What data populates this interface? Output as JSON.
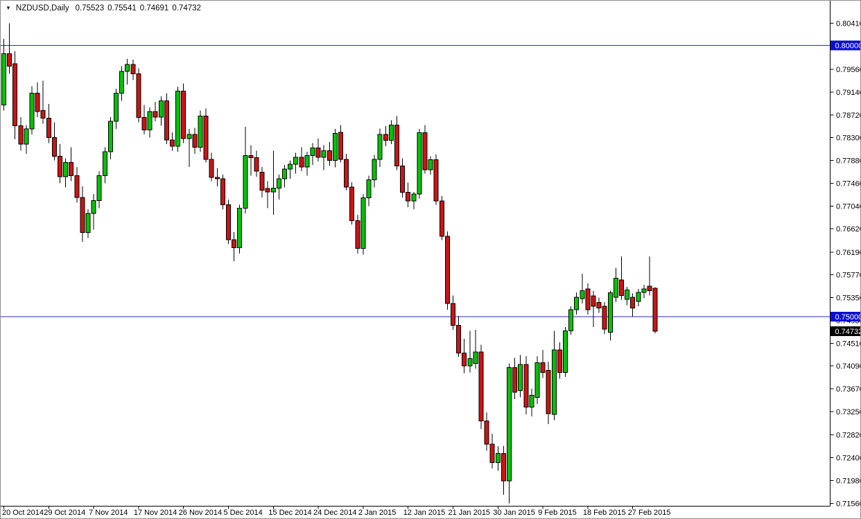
{
  "window": {
    "dropdown_icon": "▼",
    "symbol_period": "NZDUSD,Daily",
    "open": "0.75523",
    "high": "0.75541",
    "low": "0.74691",
    "close": "0.74732"
  },
  "colors": {
    "background": "#ffffff",
    "border": "#8f8f8f",
    "bull": "#00c300",
    "bear": "#cc1414",
    "outline": "#000000",
    "axis_line": "#000000",
    "axis_text": "#000000",
    "level_line": "#2828b4",
    "level_label_bg": "#0d0dd2",
    "current_label_bg": "#000000",
    "label_text": "#ffffff"
  },
  "chart_data": {
    "type": "candlestick",
    "title": "NZDUSD,Daily",
    "symbol": "NZDUSD",
    "timeframe": "Daily",
    "last_ohlc": {
      "open": 0.75523,
      "high": 0.75541,
      "low": 0.74691,
      "close": 0.74732
    },
    "ylim": [
      0.7156,
      0.8047
    ],
    "grid": false,
    "y_ticks": [
      {
        "label": "0.80410",
        "price": 0.8041
      },
      {
        "label": "0.79560",
        "price": 0.7956
      },
      {
        "label": "0.79140",
        "price": 0.7914
      },
      {
        "label": "0.78720",
        "price": 0.7872
      },
      {
        "label": "0.78300",
        "price": 0.783
      },
      {
        "label": "0.77880",
        "price": 0.7788
      },
      {
        "label": "0.77460",
        "price": 0.7746
      },
      {
        "label": "0.77040",
        "price": 0.7704
      },
      {
        "label": "0.76620",
        "price": 0.7662
      },
      {
        "label": "0.76190",
        "price": 0.7619
      },
      {
        "label": "0.75770",
        "price": 0.7577
      },
      {
        "label": "0.75350",
        "price": 0.7535
      },
      {
        "label": "0.74930",
        "price": 0.7493
      },
      {
        "label": "0.74510",
        "price": 0.7451
      },
      {
        "label": "0.74090",
        "price": 0.7409
      },
      {
        "label": "0.73670",
        "price": 0.7367
      },
      {
        "label": "0.73250",
        "price": 0.7325
      },
      {
        "label": "0.72820",
        "price": 0.7282
      },
      {
        "label": "0.72400",
        "price": 0.724
      },
      {
        "label": "0.71980",
        "price": 0.7198
      },
      {
        "label": "0.71560",
        "price": 0.7156
      }
    ],
    "levels": [
      {
        "label": "0.80000",
        "price": 0.8
      },
      {
        "label": "0.75000",
        "price": 0.75
      }
    ],
    "current_price": {
      "label": "0.74732",
      "price": 0.74732
    },
    "x_tick_labels": [
      "20 Oct 2014",
      "29 Oct 2014",
      "7 Nov 2014",
      "17 Nov 2014",
      "26 Nov 2014",
      "5 Dec 2014",
      "15 Dec 2014",
      "24 Dec 2014",
      "2 Jan 2015",
      "12 Jan 2015",
      "21 Jan 2015",
      "30 Jan 2015",
      "9 Feb 2015",
      "18 Feb 2015",
      "27 Feb 2015"
    ],
    "x_tick_interval_candles": 8,
    "candles": [
      [
        0.789,
        0.8012,
        0.788,
        0.7985
      ],
      [
        0.7985,
        0.8041,
        0.7948,
        0.7962
      ],
      [
        0.7966,
        0.7989,
        0.7827,
        0.7852
      ],
      [
        0.7852,
        0.7868,
        0.7806,
        0.7818
      ],
      [
        0.7818,
        0.7853,
        0.78,
        0.7846
      ],
      [
        0.7846,
        0.7925,
        0.7836,
        0.7912
      ],
      [
        0.7912,
        0.7932,
        0.7868,
        0.7878
      ],
      [
        0.788,
        0.7935,
        0.7856,
        0.7866
      ],
      [
        0.7866,
        0.7892,
        0.782,
        0.783
      ],
      [
        0.783,
        0.7858,
        0.7788,
        0.7796
      ],
      [
        0.7796,
        0.7818,
        0.7746,
        0.7758
      ],
      [
        0.7758,
        0.7792,
        0.7738,
        0.7784
      ],
      [
        0.7784,
        0.7812,
        0.775,
        0.776
      ],
      [
        0.776,
        0.7776,
        0.771,
        0.772
      ],
      [
        0.772,
        0.774,
        0.7638,
        0.7655
      ],
      [
        0.7655,
        0.7698,
        0.7645,
        0.769
      ],
      [
        0.769,
        0.7726,
        0.766,
        0.7714
      ],
      [
        0.7714,
        0.7768,
        0.77,
        0.776
      ],
      [
        0.776,
        0.7812,
        0.7746,
        0.7804
      ],
      [
        0.7804,
        0.7868,
        0.779,
        0.786
      ],
      [
        0.786,
        0.792,
        0.7846,
        0.7912
      ],
      [
        0.7912,
        0.7962,
        0.7898,
        0.7952
      ],
      [
        0.7952,
        0.7975,
        0.7928,
        0.7965
      ],
      [
        0.7965,
        0.7974,
        0.7936,
        0.7948
      ],
      [
        0.7948,
        0.7958,
        0.7858,
        0.7867
      ],
      [
        0.7867,
        0.789,
        0.7836,
        0.7844
      ],
      [
        0.7844,
        0.7886,
        0.783,
        0.7878
      ],
      [
        0.7878,
        0.7896,
        0.786,
        0.7868
      ],
      [
        0.7868,
        0.7906,
        0.7852,
        0.7898
      ],
      [
        0.7898,
        0.7912,
        0.7818,
        0.7826
      ],
      [
        0.7826,
        0.784,
        0.7806,
        0.7814
      ],
      [
        0.7814,
        0.7924,
        0.7804,
        0.7916
      ],
      [
        0.7916,
        0.793,
        0.782,
        0.7828
      ],
      [
        0.7828,
        0.7846,
        0.7776,
        0.7836
      ],
      [
        0.7836,
        0.7848,
        0.78,
        0.7812
      ],
      [
        0.7812,
        0.788,
        0.7804,
        0.787
      ],
      [
        0.787,
        0.7884,
        0.7784,
        0.779
      ],
      [
        0.779,
        0.7802,
        0.775,
        0.7757
      ],
      [
        0.7757,
        0.7774,
        0.774,
        0.7754
      ],
      [
        0.7754,
        0.7762,
        0.7698,
        0.7706
      ],
      [
        0.7706,
        0.7716,
        0.7634,
        0.7642
      ],
      [
        0.7642,
        0.7656,
        0.7602,
        0.7627
      ],
      [
        0.7627,
        0.7706,
        0.7616,
        0.77
      ],
      [
        0.77,
        0.785,
        0.769,
        0.7797
      ],
      [
        0.7797,
        0.7816,
        0.776,
        0.7793
      ],
      [
        0.7793,
        0.7806,
        0.7758,
        0.7768
      ],
      [
        0.7766,
        0.7776,
        0.772,
        0.7733
      ],
      [
        0.7736,
        0.775,
        0.77,
        0.773
      ],
      [
        0.773,
        0.7806,
        0.7688,
        0.7737
      ],
      [
        0.7737,
        0.7762,
        0.7716,
        0.7754
      ],
      [
        0.7754,
        0.778,
        0.7738,
        0.7772
      ],
      [
        0.7772,
        0.7788,
        0.7754,
        0.7781
      ],
      [
        0.7781,
        0.7802,
        0.7764,
        0.7794
      ],
      [
        0.7794,
        0.7812,
        0.7768,
        0.7776
      ],
      [
        0.7776,
        0.7804,
        0.776,
        0.7797
      ],
      [
        0.7797,
        0.782,
        0.778,
        0.7811
      ],
      [
        0.7811,
        0.7828,
        0.7786,
        0.7794
      ],
      [
        0.7794,
        0.7816,
        0.777,
        0.7806
      ],
      [
        0.7806,
        0.7822,
        0.7778,
        0.7788
      ],
      [
        0.7788,
        0.7846,
        0.7775,
        0.7838
      ],
      [
        0.784,
        0.7853,
        0.7784,
        0.779
      ],
      [
        0.779,
        0.78,
        0.7733,
        0.7739
      ],
      [
        0.7739,
        0.7748,
        0.767,
        0.7677
      ],
      [
        0.7677,
        0.7688,
        0.7616,
        0.7626
      ],
      [
        0.7626,
        0.7726,
        0.7614,
        0.7719
      ],
      [
        0.7719,
        0.776,
        0.7704,
        0.7752
      ],
      [
        0.7752,
        0.7798,
        0.7738,
        0.779
      ],
      [
        0.779,
        0.7847,
        0.7776,
        0.7836
      ],
      [
        0.7836,
        0.7851,
        0.7814,
        0.7825
      ],
      [
        0.7825,
        0.7862,
        0.7818,
        0.7853
      ],
      [
        0.7853,
        0.787,
        0.777,
        0.7778
      ],
      [
        0.7778,
        0.7792,
        0.772,
        0.7729
      ],
      [
        0.7729,
        0.7747,
        0.7702,
        0.7713
      ],
      [
        0.7713,
        0.773,
        0.7698,
        0.7726
      ],
      [
        0.7726,
        0.7846,
        0.7718,
        0.7839
      ],
      [
        0.7839,
        0.7853,
        0.7764,
        0.7771
      ],
      [
        0.7771,
        0.7796,
        0.7762,
        0.7789
      ],
      [
        0.7789,
        0.7799,
        0.7706,
        0.7713
      ],
      [
        0.7713,
        0.7722,
        0.7641,
        0.7648
      ],
      [
        0.7648,
        0.7657,
        0.7513,
        0.7524
      ],
      [
        0.7524,
        0.7539,
        0.7476,
        0.7484
      ],
      [
        0.7484,
        0.7501,
        0.7426,
        0.7433
      ],
      [
        0.7433,
        0.7459,
        0.7396,
        0.7409
      ],
      [
        0.7409,
        0.7474,
        0.7397,
        0.7423
      ],
      [
        0.7414,
        0.7476,
        0.7404,
        0.7435
      ],
      [
        0.7435,
        0.7448,
        0.7293,
        0.7308
      ],
      [
        0.7308,
        0.7324,
        0.7253,
        0.7265
      ],
      [
        0.7265,
        0.7284,
        0.722,
        0.7231
      ],
      [
        0.7231,
        0.7261,
        0.7216,
        0.7248
      ],
      [
        0.7248,
        0.7262,
        0.7172,
        0.7197
      ],
      [
        0.7197,
        0.7414,
        0.7156,
        0.7406
      ],
      [
        0.7406,
        0.7424,
        0.7348,
        0.7361
      ],
      [
        0.7364,
        0.7429,
        0.7351,
        0.7412
      ],
      [
        0.7412,
        0.7427,
        0.732,
        0.7333
      ],
      [
        0.7333,
        0.7367,
        0.7316,
        0.7355
      ],
      [
        0.7351,
        0.7427,
        0.7339,
        0.7415
      ],
      [
        0.7415,
        0.7439,
        0.7387,
        0.7397
      ],
      [
        0.7401,
        0.7417,
        0.7302,
        0.7321
      ],
      [
        0.732,
        0.7474,
        0.7309,
        0.7439
      ],
      [
        0.7439,
        0.7453,
        0.7386,
        0.7397
      ],
      [
        0.7397,
        0.7481,
        0.7389,
        0.7474
      ],
      [
        0.7474,
        0.7519,
        0.7467,
        0.7513
      ],
      [
        0.7513,
        0.7545,
        0.7504,
        0.7536
      ],
      [
        0.7533,
        0.7579,
        0.7524,
        0.7548
      ],
      [
        0.7551,
        0.7561,
        0.7504,
        0.7513
      ],
      [
        0.7538,
        0.7547,
        0.7481,
        0.7519
      ],
      [
        0.7526,
        0.7535,
        0.7507,
        0.7516
      ],
      [
        0.7519,
        0.7527,
        0.7468,
        0.7477
      ],
      [
        0.7471,
        0.7548,
        0.7456,
        0.7544
      ],
      [
        0.7536,
        0.759,
        0.7527,
        0.7571
      ],
      [
        0.7568,
        0.7611,
        0.7531,
        0.7539
      ],
      [
        0.7532,
        0.7555,
        0.7521,
        0.7549
      ],
      [
        0.7536,
        0.7543,
        0.75,
        0.7516
      ],
      [
        0.7528,
        0.7551,
        0.7519,
        0.7545
      ],
      [
        0.7545,
        0.7559,
        0.7534,
        0.7551
      ],
      [
        0.7556,
        0.7611,
        0.7539,
        0.7548
      ],
      [
        0.75523,
        0.75541,
        0.74691,
        0.74732
      ]
    ]
  }
}
